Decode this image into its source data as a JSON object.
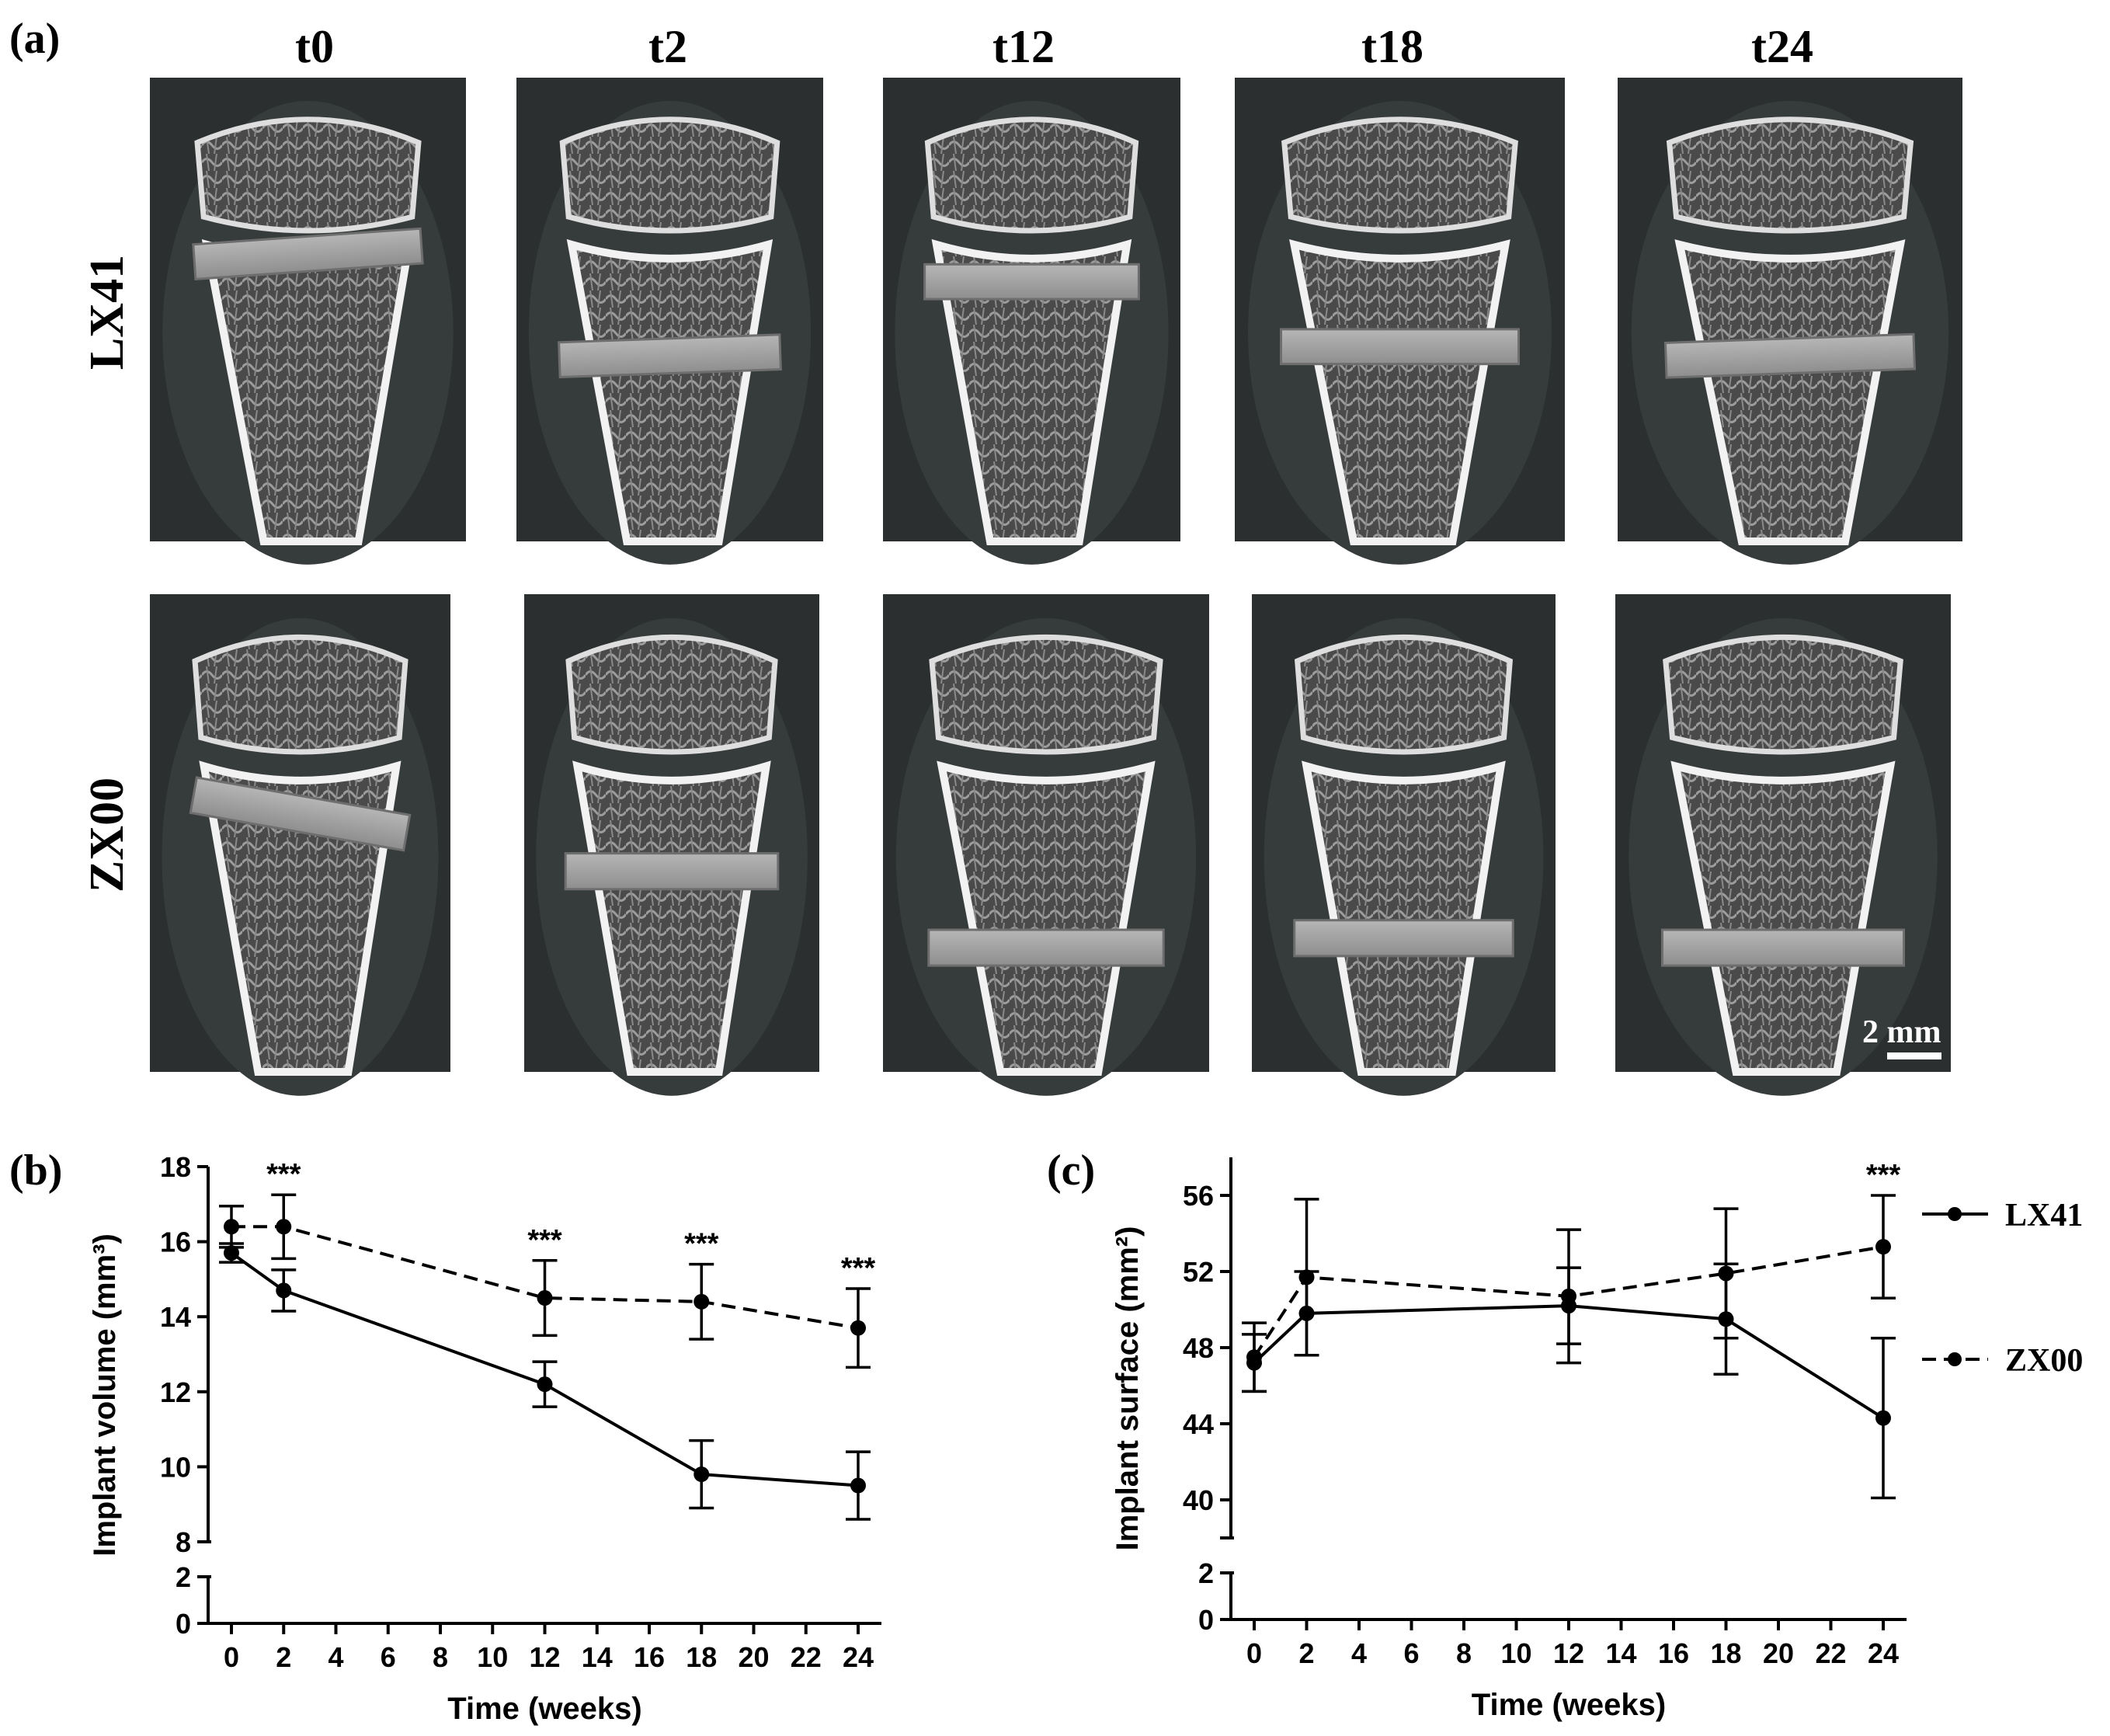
{
  "panel_labels": {
    "a": "(a)",
    "b": "(b)",
    "c": "(c)"
  },
  "micro_ct": {
    "columns": [
      "t0",
      "t2",
      "t12",
      "t18",
      "t24"
    ],
    "rows": [
      "LX41",
      "ZX00"
    ],
    "scale_bar": "2 mm"
  },
  "chart_data": [
    {
      "type": "line",
      "xlabel": "Time (weeks)",
      "ylabel": "Implant volume (mm³)",
      "xlim": [
        0,
        24
      ],
      "xticks": [
        0,
        2,
        4,
        6,
        8,
        10,
        12,
        14,
        16,
        18,
        20,
        22,
        24
      ],
      "ylim_upper": [
        8,
        18
      ],
      "ylim_lower": [
        0,
        2
      ],
      "yticks": [
        0,
        2,
        8,
        10,
        12,
        14,
        16,
        18
      ],
      "axis_break": true,
      "grid": false,
      "series": [
        {
          "name": "LX41",
          "line_style": "solid",
          "x": [
            0,
            2,
            12,
            18,
            24
          ],
          "y": [
            15.7,
            14.7,
            12.2,
            9.8,
            9.5
          ],
          "err": [
            0.25,
            0.55,
            0.6,
            0.9,
            0.9
          ]
        },
        {
          "name": "ZX00",
          "line_style": "dashed",
          "x": [
            0,
            2,
            12,
            18,
            24
          ],
          "y": [
            16.4,
            16.4,
            14.5,
            14.4,
            13.7
          ],
          "err": [
            0.55,
            0.85,
            1.0,
            1.0,
            1.05
          ]
        }
      ],
      "annotations": [
        {
          "x": 2,
          "text": "***"
        },
        {
          "x": 12,
          "text": "***"
        },
        {
          "x": 18,
          "text": "***"
        },
        {
          "x": 24,
          "text": "***"
        }
      ]
    },
    {
      "type": "line",
      "xlabel": "Time (weeks)",
      "ylabel": "Implant surface (mm²)",
      "xlim": [
        0,
        24
      ],
      "xticks": [
        0,
        2,
        4,
        6,
        8,
        10,
        12,
        14,
        16,
        18,
        20,
        22,
        24
      ],
      "ylim_upper": [
        38,
        58
      ],
      "ylim_lower": [
        0,
        2
      ],
      "yticks": [
        0,
        2,
        40,
        44,
        48,
        52,
        56
      ],
      "axis_break": true,
      "grid": false,
      "legend_position": "right",
      "series": [
        {
          "name": "LX41",
          "line_style": "solid",
          "x": [
            0,
            2,
            12,
            18,
            24
          ],
          "y": [
            47.2,
            49.8,
            50.2,
            49.5,
            44.3
          ],
          "err": [
            1.5,
            2.2,
            2.0,
            2.9,
            4.2
          ]
        },
        {
          "name": "ZX00",
          "line_style": "dashed",
          "x": [
            0,
            2,
            12,
            18,
            24
          ],
          "y": [
            47.5,
            51.7,
            50.7,
            51.9,
            53.3
          ],
          "err": [
            1.8,
            4.1,
            3.5,
            3.4,
            2.7
          ]
        }
      ],
      "annotations": [
        {
          "x": 24,
          "text": "***"
        }
      ]
    }
  ]
}
